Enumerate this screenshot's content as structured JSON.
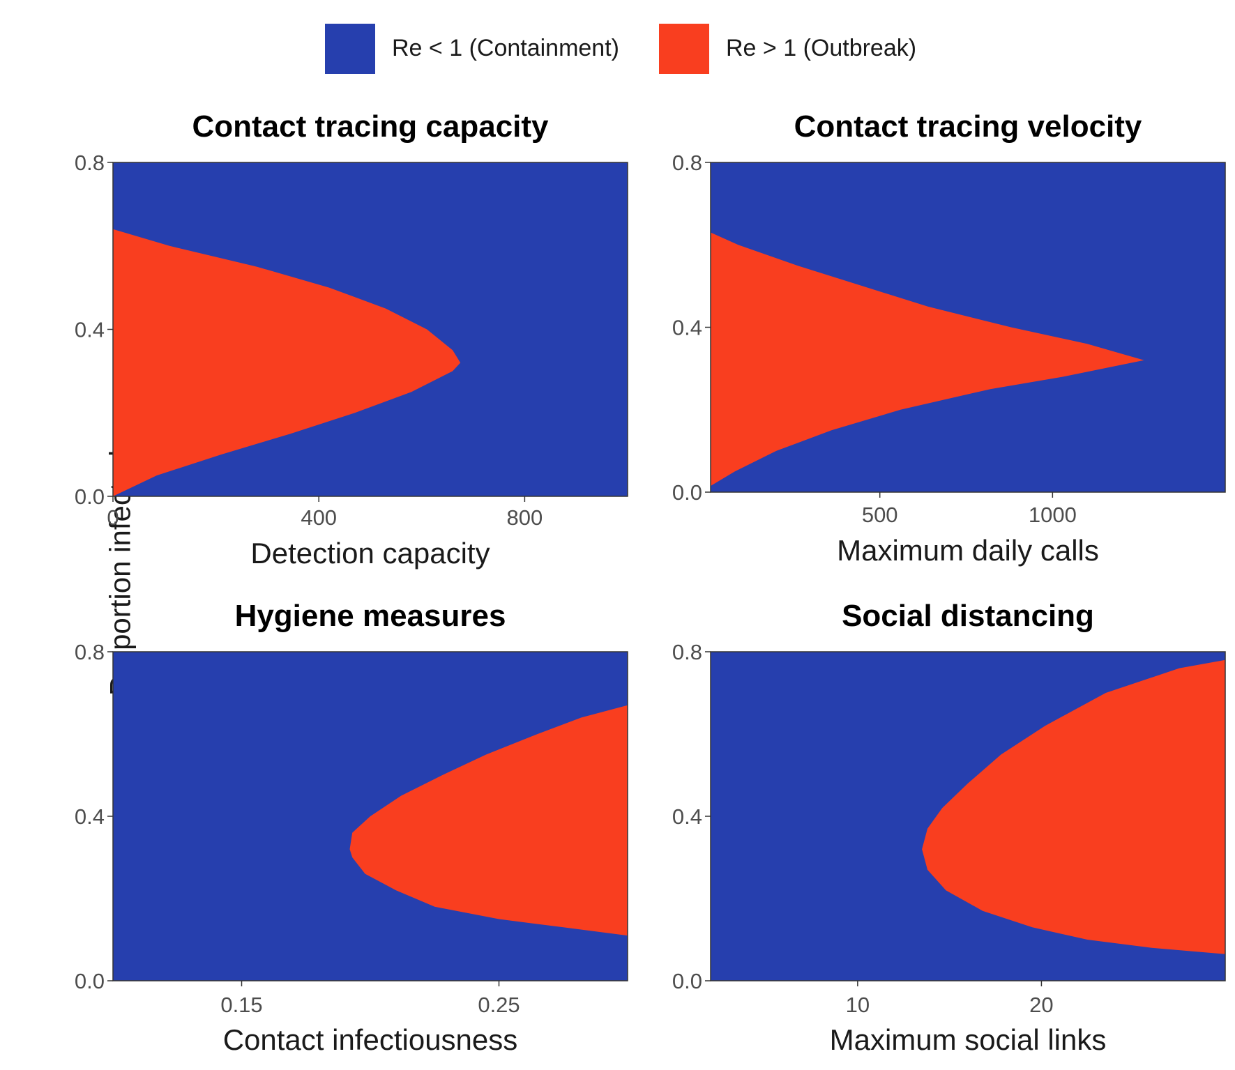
{
  "legend": {
    "items": [
      {
        "key": "containment",
        "label": "Re < 1 (Containment)",
        "color": "#263fae"
      },
      {
        "key": "outbreak",
        "label": "Re > 1 (Outbreak)",
        "color": "#f93e1f"
      }
    ]
  },
  "shared_ylabel": "Proportion infected",
  "chart_data": [
    {
      "type": "heatmap",
      "title": "Contact tracing capacity",
      "xlabel": "Detection capacity",
      "ylabel": "Proportion infected",
      "xlim": [
        0,
        1000
      ],
      "ylim": [
        0,
        0.8
      ],
      "xticks": [
        0,
        400,
        800
      ],
      "xtick_labels": [
        "0",
        "400",
        "800"
      ],
      "yticks": [
        0,
        0.4,
        0.8
      ],
      "ytick_labels": [
        "0.0",
        "0.4",
        "0.8"
      ],
      "background_region": "Re < 1 (Containment)",
      "region": "Re > 1 (Outbreak)",
      "region_anchor": "left",
      "boundary": {
        "y": [
          0.0,
          0.05,
          0.1,
          0.15,
          0.2,
          0.25,
          0.3,
          0.32,
          0.35,
          0.4,
          0.45,
          0.5,
          0.55,
          0.6,
          0.64
        ],
        "x": [
          0,
          85,
          210,
          345,
          470,
          580,
          660,
          675,
          660,
          610,
          530,
          420,
          280,
          110,
          0
        ]
      }
    },
    {
      "type": "heatmap",
      "title": "Contact tracing velocity",
      "xlabel": "Maximum daily calls",
      "ylabel": "Proportion infected",
      "xlim": [
        10,
        1500
      ],
      "ylim": [
        0,
        0.8
      ],
      "xticks": [
        500,
        1000
      ],
      "xtick_labels": [
        "500",
        "1000"
      ],
      "yticks": [
        0,
        0.4,
        0.8
      ],
      "ytick_labels": [
        "0.0",
        "0.4",
        "0.8"
      ],
      "background_region": "Re < 1 (Containment)",
      "region": "Re > 1 (Outbreak)",
      "region_anchor": "left",
      "boundary": {
        "y": [
          0.015,
          0.05,
          0.1,
          0.15,
          0.2,
          0.25,
          0.28,
          0.32,
          0.36,
          0.4,
          0.45,
          0.5,
          0.55,
          0.6,
          0.63
        ],
        "x": [
          10,
          80,
          200,
          360,
          560,
          820,
          1030,
          1265,
          1100,
          880,
          640,
          450,
          260,
          90,
          10
        ]
      }
    },
    {
      "type": "heatmap",
      "title": "Hygiene measures",
      "xlabel": "Contact infectiousness",
      "ylabel": "Proportion infected",
      "xlim": [
        0.1,
        0.3
      ],
      "ylim": [
        0,
        0.8
      ],
      "xticks": [
        0.15,
        0.25
      ],
      "xtick_labels": [
        "0.15",
        "0.25"
      ],
      "yticks": [
        0,
        0.4,
        0.8
      ],
      "ytick_labels": [
        "0.0",
        "0.4",
        "0.8"
      ],
      "background_region": "Re < 1 (Containment)",
      "region": "Re > 1 (Outbreak)",
      "region_anchor": "right",
      "boundary": {
        "y": [
          0.11,
          0.13,
          0.15,
          0.18,
          0.22,
          0.26,
          0.3,
          0.32,
          0.36,
          0.4,
          0.45,
          0.5,
          0.55,
          0.6,
          0.64,
          0.67
        ],
        "x": [
          0.3,
          0.275,
          0.25,
          0.225,
          0.21,
          0.198,
          0.193,
          0.192,
          0.193,
          0.2,
          0.212,
          0.228,
          0.245,
          0.265,
          0.282,
          0.3
        ]
      }
    },
    {
      "type": "heatmap",
      "title": "Social distancing",
      "xlabel": "Maximum social links",
      "ylabel": "Proportion infected",
      "xlim": [
        2,
        30
      ],
      "ylim": [
        0,
        0.8
      ],
      "xticks": [
        10,
        20
      ],
      "xtick_labels": [
        "10",
        "20"
      ],
      "yticks": [
        0,
        0.4,
        0.8
      ],
      "ytick_labels": [
        "0.0",
        "0.4",
        "0.8"
      ],
      "background_region": "Re < 1 (Containment)",
      "region": "Re > 1 (Outbreak)",
      "region_anchor": "right",
      "boundary": {
        "y": [
          0.065,
          0.08,
          0.1,
          0.13,
          0.17,
          0.22,
          0.27,
          0.32,
          0.37,
          0.42,
          0.48,
          0.55,
          0.62,
          0.7,
          0.76,
          0.78
        ],
        "x": [
          30,
          26,
          22.5,
          19.5,
          16.8,
          14.8,
          13.8,
          13.5,
          13.8,
          14.6,
          16.0,
          17.8,
          20.2,
          23.5,
          27.5,
          30
        ]
      }
    }
  ]
}
